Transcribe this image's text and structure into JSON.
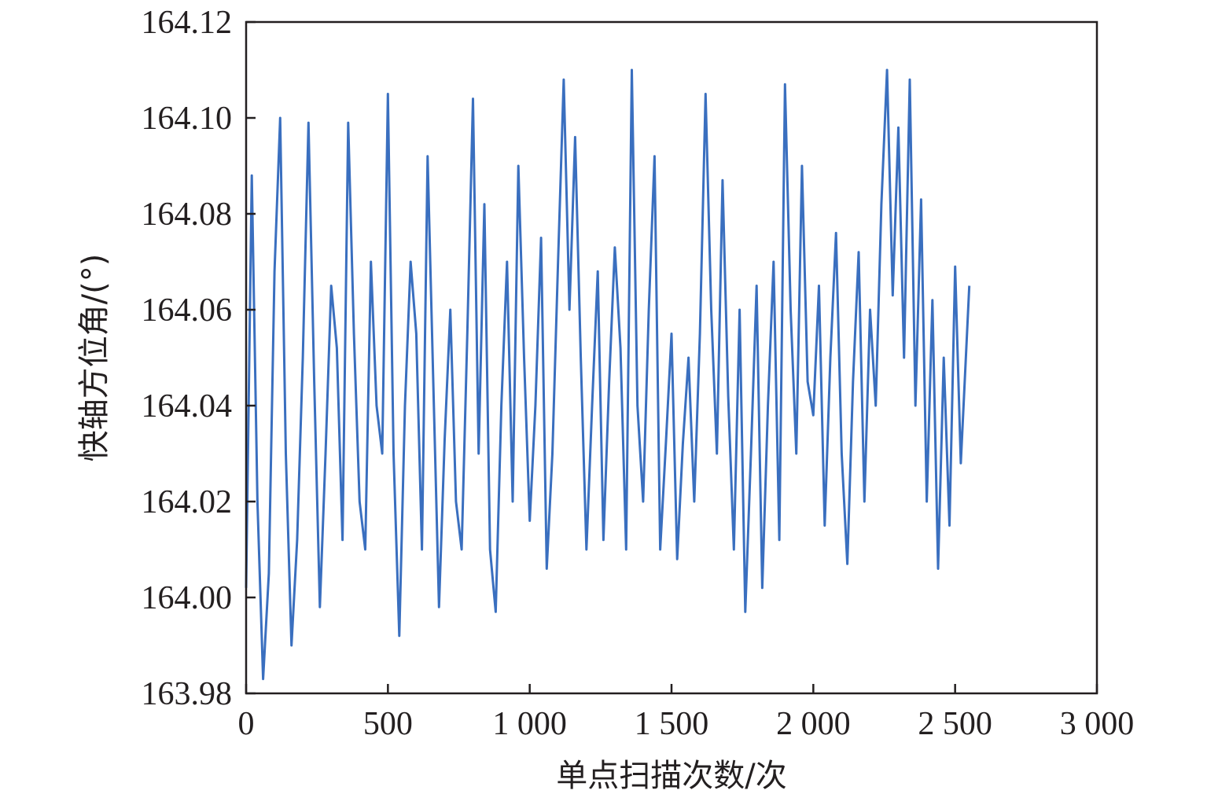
{
  "chart_data": {
    "type": "line",
    "title": "",
    "xlabel": "单点扫描次数/次",
    "ylabel": "快轴方位角/(°)",
    "xlim": [
      0,
      3000
    ],
    "ylim": [
      163.98,
      164.12
    ],
    "x_ticks": [
      0,
      500,
      1000,
      1500,
      2000,
      2500,
      3000
    ],
    "x_tick_labels": [
      "0",
      "500",
      "1 000",
      "1 500",
      "2 000",
      "2 500",
      "3 000"
    ],
    "y_ticks": [
      163.98,
      164.0,
      164.02,
      164.04,
      164.06,
      164.08,
      164.1,
      164.12
    ],
    "y_tick_labels": [
      "163.98",
      "164.00",
      "164.02",
      "164.04",
      "164.06",
      "164.08",
      "164.10",
      "164.12"
    ],
    "grid": false,
    "legend": "none",
    "series": [
      {
        "color": "#3a6fbf",
        "x": [
          0,
          20,
          40,
          60,
          80,
          100,
          120,
          140,
          160,
          180,
          200,
          220,
          240,
          260,
          280,
          300,
          320,
          340,
          360,
          380,
          400,
          420,
          440,
          460,
          480,
          500,
          520,
          540,
          560,
          580,
          600,
          620,
          640,
          660,
          680,
          700,
          720,
          740,
          760,
          780,
          800,
          820,
          840,
          860,
          880,
          900,
          920,
          940,
          960,
          980,
          1000,
          1020,
          1040,
          1060,
          1080,
          1100,
          1120,
          1140,
          1160,
          1180,
          1200,
          1220,
          1240,
          1260,
          1280,
          1300,
          1320,
          1340,
          1360,
          1380,
          1400,
          1420,
          1440,
          1460,
          1480,
          1500,
          1520,
          1540,
          1560,
          1580,
          1600,
          1620,
          1640,
          1660,
          1680,
          1700,
          1720,
          1740,
          1760,
          1780,
          1800,
          1820,
          1840,
          1860,
          1880,
          1900,
          1920,
          1940,
          1960,
          1980,
          2000,
          2020,
          2040,
          2060,
          2080,
          2100,
          2120,
          2140,
          2160,
          2180,
          2200,
          2220,
          2240,
          2260,
          2280,
          2300,
          2320,
          2340,
          2360,
          2380,
          2400,
          2420,
          2440,
          2460,
          2480,
          2500,
          2520,
          2550
        ],
        "y": [
          164.002,
          164.088,
          164.02,
          163.983,
          164.005,
          164.068,
          164.1,
          164.03,
          163.99,
          164.012,
          164.05,
          164.099,
          164.045,
          163.998,
          164.03,
          164.065,
          164.052,
          164.012,
          164.099,
          164.055,
          164.02,
          164.01,
          164.07,
          164.04,
          164.03,
          164.105,
          164.03,
          163.992,
          164.04,
          164.07,
          164.055,
          164.01,
          164.092,
          164.045,
          163.998,
          164.033,
          164.06,
          164.02,
          164.01,
          164.055,
          164.104,
          164.03,
          164.082,
          164.01,
          163.997,
          164.04,
          164.07,
          164.02,
          164.09,
          164.05,
          164.016,
          164.04,
          164.075,
          164.006,
          164.03,
          164.07,
          164.108,
          164.06,
          164.096,
          164.05,
          164.01,
          164.04,
          164.068,
          164.012,
          164.045,
          164.073,
          164.052,
          164.01,
          164.11,
          164.04,
          164.02,
          164.06,
          164.092,
          164.01,
          164.032,
          164.055,
          164.008,
          164.032,
          164.05,
          164.02,
          164.055,
          164.105,
          164.06,
          164.03,
          164.087,
          164.042,
          164.01,
          164.06,
          163.997,
          164.03,
          164.065,
          164.002,
          164.04,
          164.07,
          164.012,
          164.107,
          164.06,
          164.03,
          164.09,
          164.045,
          164.038,
          164.065,
          164.015,
          164.05,
          164.076,
          164.03,
          164.007,
          164.045,
          164.072,
          164.02,
          164.06,
          164.04,
          164.082,
          164.11,
          164.063,
          164.098,
          164.05,
          164.108,
          164.04,
          164.083,
          164.02,
          164.062,
          164.006,
          164.05,
          164.015,
          164.069,
          164.028,
          164.065
        ]
      }
    ]
  }
}
